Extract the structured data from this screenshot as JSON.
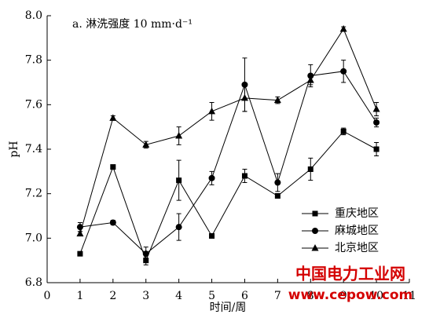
{
  "chart_data": {
    "type": "line",
    "annotation": "a. 淋洗强度 10 mm·d⁻¹",
    "x_label": "时间/周",
    "y_label": "pH",
    "x": [
      1,
      2,
      3,
      4,
      5,
      6,
      7,
      8,
      9,
      10
    ],
    "xlim": [
      0,
      11
    ],
    "xticks": [
      0,
      1,
      2,
      3,
      4,
      5,
      6,
      7,
      8,
      9,
      10,
      11
    ],
    "ylim": [
      6.8,
      8.0
    ],
    "yticks": [
      6.8,
      {
        "value": 7.0,
        "label": "7.0"
      },
      7.2,
      7.4,
      7.6,
      7.8,
      {
        "value": 8.0,
        "label": "8.0"
      }
    ],
    "legend": "lower right",
    "series": [
      {
        "name": "重庆地区",
        "color": "#000000",
        "marker": "square",
        "values": [
          6.93,
          7.32,
          6.9,
          7.26,
          7.01,
          7.28,
          7.19,
          7.31,
          7.48,
          7.4
        ],
        "errors": [
          0.005,
          0.01,
          0.02,
          0.09,
          0.005,
          0.03,
          0.01,
          0.05,
          0.015,
          0.03
        ]
      },
      {
        "name": "麻城地区",
        "color": "#000000",
        "marker": "circle",
        "values": [
          7.05,
          7.07,
          6.93,
          7.05,
          7.27,
          7.69,
          7.25,
          7.73,
          7.75,
          7.52
        ],
        "errors": [
          0.02,
          0.01,
          0.03,
          0.06,
          0.03,
          0.12,
          0.04,
          0.05,
          0.05,
          0.02
        ]
      },
      {
        "name": "北京地区",
        "color": "#000000",
        "marker": "triangle",
        "values": [
          7.02,
          7.54,
          7.42,
          7.46,
          7.57,
          7.63,
          7.62,
          7.71,
          7.94,
          7.58
        ],
        "errors": [
          0.01,
          0.01,
          0.015,
          0.04,
          0.04,
          0.06,
          0.015,
          0.02,
          0.01,
          0.03
        ]
      }
    ],
    "watermark": {
      "title": "中国电力工业网",
      "url": "www.cepow.com"
    }
  }
}
